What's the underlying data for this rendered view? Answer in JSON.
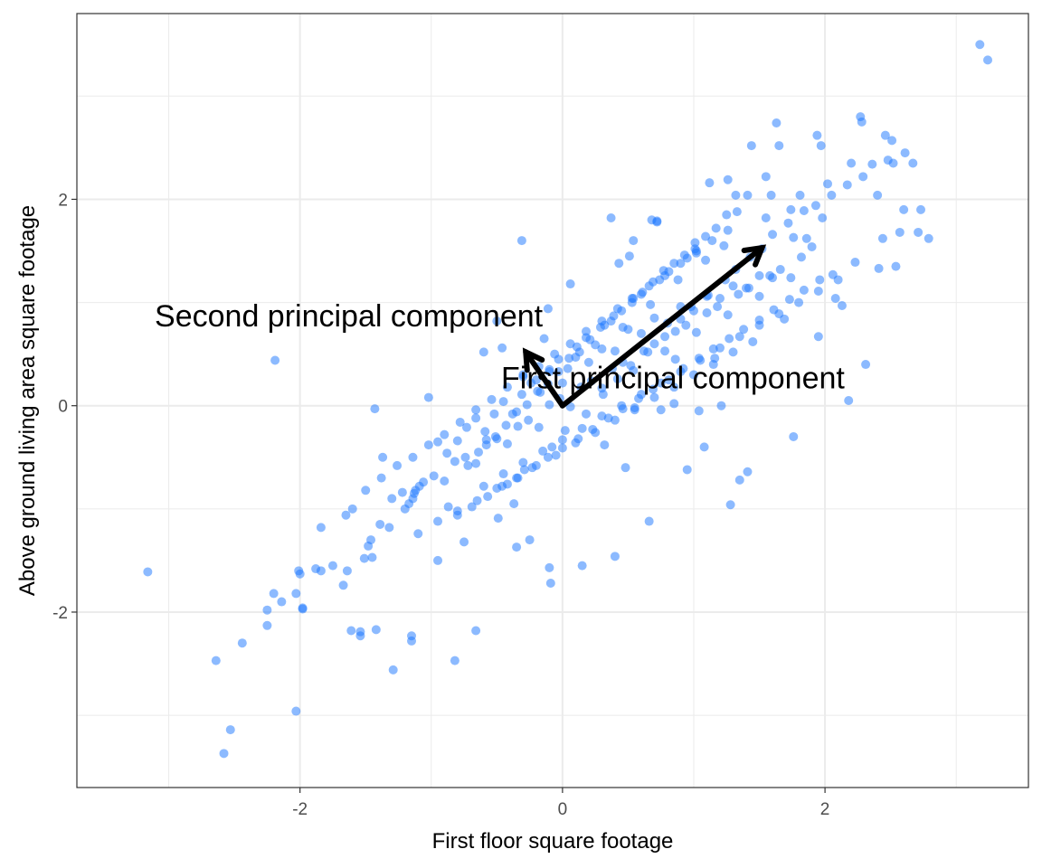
{
  "chart_data": {
    "type": "scatter",
    "title": "",
    "xlabel": "First floor square footage",
    "ylabel": "Above ground living area square footage",
    "xlim": [
      -3.7,
      3.55
    ],
    "ylim": [
      -3.7,
      3.8
    ],
    "x_ticks": [
      -2,
      0,
      2
    ],
    "y_ticks": [
      -2,
      0,
      2
    ],
    "x_tick_labels": [
      "-2",
      "0",
      "2"
    ],
    "y_tick_labels": [
      "-2",
      "0",
      "2"
    ],
    "grid": true,
    "legend": "none",
    "colors": {
      "points": "#1a75ff",
      "arrows": "#000000",
      "grid": "#ebebeb",
      "panel_border": "#333333"
    },
    "points": {
      "x": [
        3.18,
        3.24,
        2.27,
        2.28,
        1.63,
        1.65,
        2.46,
        2.51,
        1.94,
        1.97,
        2.2,
        2.52,
        2.67,
        2.02,
        2.4,
        1.44,
        1.55,
        1.59,
        1.81,
        1.98,
        1.12,
        1.26,
        1.32,
        1.41,
        1.55,
        1.74,
        2.6,
        2.73,
        2.79,
        2.57,
        2.44,
        2.71,
        2.41,
        2.54,
        1.01,
        0.72,
        0.37,
        0.54,
        1.23,
        1.76,
        1.86,
        1.9,
        0.51,
        0.43,
        -0.31,
        -0.5,
        -2.19,
        -1.43,
        -0.46,
        -1.02,
        -0.6,
        -0.14,
        0.06,
        -0.11,
        0.95,
        1.35,
        1.08,
        0.75,
        1.21,
        0.85,
        1.69,
        2.08,
        2.23,
        2.13,
        -2.44,
        -2.64,
        -2.25,
        -2.25,
        -2.2,
        -2.14,
        -2.03,
        -2.01,
        -2.0,
        -1.98,
        -1.84,
        -1.84,
        -1.88,
        -1.75,
        -1.67,
        -1.64,
        -1.54,
        -1.51,
        -1.48,
        -1.46,
        -1.39,
        -1.32,
        -1.2,
        -1.17,
        -1.12,
        -1.09,
        -3.16,
        -2.53,
        -2.58,
        -2.03,
        -1.98,
        -1.61,
        -1.54,
        -1.42,
        -1.29,
        -1.15,
        -1.15,
        -0.82,
        -0.66,
        -0.09,
        -0.25,
        -0.49,
        -0.37,
        -0.42,
        -0.29,
        -0.08,
        0.02,
        0.18,
        0.31,
        0.42,
        0.52,
        0.65,
        0.78,
        0.9,
        0.98,
        1.11,
        1.24,
        1.32,
        1.43,
        1.52,
        1.6,
        1.72,
        1.84,
        1.93,
        2.05,
        2.17,
        2.29,
        2.36,
        2.48,
        2.61,
        -0.72,
        -0.64,
        -0.58,
        -0.51,
        -0.43,
        -0.35,
        -0.27,
        -0.19,
        -0.11,
        -0.03,
        0.05,
        0.13,
        0.21,
        0.29,
        0.37,
        0.45,
        0.53,
        0.61,
        0.69,
        0.77,
        0.85,
        0.93,
        1.01,
        1.09,
        1.17,
        1.25,
        1.33,
        -0.95,
        -0.88,
        -0.8,
        -0.73,
        -0.66,
        -0.59,
        -0.52,
        -0.45,
        -0.38,
        -0.31,
        -0.24,
        -0.17,
        -0.1,
        -0.03,
        0.04,
        0.11,
        0.18,
        0.25,
        0.32,
        0.39,
        0.46,
        0.53,
        0.6,
        0.67,
        0.74,
        0.81,
        0.88,
        0.95,
        1.02,
        1.09,
        -1.3,
        -1.22,
        -1.14,
        -1.06,
        -0.98,
        -0.9,
        -0.82,
        -0.74,
        -0.66,
        -0.58,
        -0.5,
        -0.42,
        -0.34,
        -0.26,
        -0.18,
        -0.1,
        -0.02,
        0.06,
        0.14,
        0.22,
        0.3,
        0.38,
        0.46,
        0.54,
        0.62,
        0.7,
        0.78,
        0.86,
        0.94,
        1.02,
        1.1,
        1.18,
        1.26,
        1.34,
        1.42,
        1.5,
        1.58,
        1.66,
        1.74,
        1.82,
        -0.8,
        -0.69,
        -0.57,
        -0.46,
        -0.34,
        -0.23,
        -0.11,
        0.0,
        0.12,
        0.23,
        0.35,
        0.46,
        0.58,
        0.69,
        0.81,
        0.92,
        1.04,
        1.15,
        1.27,
        1.38,
        1.5,
        1.61,
        1.73,
        1.84,
        1.96,
        -1.5,
        -1.38,
        -1.26,
        -1.14,
        -1.02,
        -0.9,
        -0.78,
        -0.66,
        -0.54,
        -0.42,
        -0.3,
        -0.18,
        -0.06,
        0.06,
        0.18,
        0.3,
        0.42,
        0.54,
        0.66,
        0.78,
        0.9,
        1.02,
        1.14,
        1.26,
        -0.6,
        -0.45,
        -0.3,
        -0.15,
        0.0,
        0.15,
        0.3,
        0.45,
        0.6,
        0.75,
        0.9,
        1.05,
        1.2,
        1.35,
        1.5,
        1.65,
        1.8,
        1.95,
        2.1,
        -1.1,
        -0.95,
        -0.8,
        -0.65,
        -0.5,
        -0.35,
        -0.2,
        -0.05,
        0.1,
        0.25,
        0.4,
        0.55,
        0.7,
        0.85,
        1.0,
        1.15,
        1.3,
        1.45,
        -0.3,
        -0.2,
        -0.1,
        0.0,
        0.1,
        0.2,
        0.3,
        0.4,
        0.5,
        0.6,
        0.7,
        0.8,
        0.9,
        1.0,
        1.1,
        1.2,
        1.3,
        1.4,
        1.5,
        1.6,
        0.68,
        0.72,
        0.32,
        0.48,
        1.04,
        1.16,
        0.86,
        0.55,
        -1.37,
        -1.13,
        -0.87,
        -1.6,
        -1.45,
        -1.65,
        -0.95,
        -0.75,
        -0.35,
        -0.1,
        0.15,
        0.4,
        0.66,
        1.28,
        1.41,
        1.76,
        2.18,
        2.31,
        1.95,
        2.06
      ],
      "y": [
        3.5,
        3.35,
        2.8,
        2.75,
        2.74,
        2.52,
        2.62,
        2.57,
        2.62,
        2.52,
        2.35,
        2.35,
        2.35,
        2.15,
        2.04,
        2.52,
        2.22,
        2.04,
        2.04,
        1.82,
        2.16,
        2.19,
        2.04,
        2.04,
        1.82,
        1.9,
        1.9,
        1.9,
        1.62,
        1.68,
        1.62,
        1.68,
        1.33,
        1.35,
        1.52,
        1.79,
        1.82,
        1.6,
        1.55,
        1.63,
        1.62,
        1.54,
        1.45,
        1.38,
        1.6,
        0.82,
        0.44,
        -0.03,
        0.56,
        0.08,
        0.52,
        0.65,
        1.18,
        0.94,
        -0.62,
        -0.72,
        -0.4,
        -0.04,
        0.0,
        0.02,
        0.84,
        1.04,
        1.39,
        0.97,
        -2.3,
        -2.47,
        -2.13,
        -1.98,
        -1.82,
        -1.9,
        -1.82,
        -1.6,
        -1.63,
        -1.97,
        -1.6,
        -1.18,
        -1.58,
        -1.55,
        -1.74,
        -1.6,
        -2.19,
        -1.48,
        -1.36,
        -1.3,
        -1.15,
        -1.18,
        -1.0,
        -0.95,
        -0.82,
        -0.78,
        -1.61,
        -3.14,
        -3.37,
        -2.96,
        -1.96,
        -2.18,
        -2.23,
        -2.17,
        -2.56,
        -2.23,
        -2.28,
        -2.47,
        -2.18,
        -1.72,
        -1.3,
        -1.09,
        -0.95,
        -0.76,
        -0.62,
        -0.4,
        -0.24,
        -0.08,
        0.11,
        0.26,
        0.39,
        0.52,
        0.67,
        0.84,
        0.96,
        1.07,
        1.22,
        1.32,
        1.44,
        1.52,
        1.66,
        1.77,
        1.89,
        1.94,
        2.04,
        2.14,
        2.22,
        2.34,
        2.38,
        2.45,
        -0.58,
        -0.45,
        -0.33,
        -0.3,
        -0.19,
        -0.06,
        0.01,
        0.14,
        0.21,
        0.33,
        0.46,
        0.52,
        0.64,
        0.76,
        0.82,
        0.92,
        1.04,
        1.1,
        1.2,
        1.31,
        1.38,
        1.46,
        1.58,
        1.64,
        1.72,
        1.85,
        1.88,
        -0.35,
        -0.46,
        -0.34,
        -0.21,
        -0.12,
        -0.25,
        -0.08,
        0.04,
        -0.08,
        0.11,
        0.22,
        0.13,
        0.33,
        0.45,
        0.36,
        0.57,
        0.66,
        0.59,
        0.78,
        0.87,
        0.76,
        1.0,
        1.08,
        0.98,
        1.22,
        1.3,
        1.22,
        1.43,
        1.5,
        1.41,
        -0.9,
        -0.84,
        -0.9,
        -0.74,
        -0.68,
        -0.73,
        -0.54,
        -0.5,
        -0.56,
        -0.38,
        -0.32,
        -0.37,
        -0.2,
        -0.14,
        -0.21,
        0.01,
        0.07,
        -0.01,
        0.18,
        0.24,
        0.17,
        0.36,
        0.42,
        0.34,
        0.53,
        0.6,
        0.53,
        0.72,
        0.78,
        0.71,
        0.9,
        0.96,
        0.88,
        1.08,
        1.14,
        1.06,
        1.26,
        1.32,
        1.24,
        1.44,
        -1.06,
        -0.98,
        -0.88,
        -0.78,
        -0.7,
        -0.6,
        -0.5,
        -0.41,
        -0.32,
        -0.23,
        -0.12,
        -0.03,
        0.07,
        0.16,
        0.25,
        0.36,
        0.46,
        0.55,
        0.65,
        0.74,
        0.83,
        0.93,
        1.03,
        1.12,
        1.22,
        -0.82,
        -0.7,
        -0.58,
        -0.5,
        -0.38,
        -0.28,
        -0.16,
        -0.04,
        0.06,
        0.18,
        0.28,
        0.38,
        0.5,
        0.6,
        0.72,
        0.82,
        0.94,
        1.04,
        1.16,
        1.26,
        1.38,
        1.48,
        1.6,
        1.7,
        -0.78,
        -0.66,
        -0.55,
        -0.44,
        -0.33,
        -0.22,
        -0.1,
        0.0,
        0.11,
        0.22,
        0.33,
        0.44,
        0.56,
        0.67,
        0.78,
        0.89,
        1.0,
        1.11,
        1.22,
        -1.24,
        -1.12,
        -1.02,
        -0.92,
        -0.8,
        -0.7,
        -0.58,
        -0.48,
        -0.36,
        -0.26,
        -0.14,
        -0.04,
        0.08,
        0.18,
        0.3,
        0.4,
        0.52,
        0.62,
        0.3,
        0.25,
        0.35,
        0.22,
        0.47,
        0.42,
        0.55,
        0.53,
        0.74,
        0.7,
        0.85,
        0.8,
        0.96,
        0.92,
        1.06,
        1.04,
        1.16,
        1.14,
        1.26,
        1.24,
        1.8,
        1.78,
        -0.38,
        -0.6,
        -0.05,
        0.46,
        0.45,
        -0.02,
        -0.5,
        -0.85,
        -0.98,
        -1.0,
        -1.47,
        -1.06,
        -1.5,
        -1.32,
        -1.37,
        -1.57,
        -1.55,
        -1.46,
        -1.12,
        -0.96,
        -0.64,
        -0.3,
        0.05,
        0.4,
        0.67,
        1.27
      ]
    },
    "pc_arrows": [
      {
        "name": "First principal component",
        "x": [
          0,
          1.52
        ],
        "y": [
          0,
          1.53
        ]
      },
      {
        "name": "Second principal component",
        "x": [
          0,
          -0.28
        ],
        "y": [
          0,
          0.52
        ]
      }
    ],
    "annotations": [
      {
        "text": "Second principal component",
        "x": -0.15,
        "y": 0.77
      },
      {
        "text": "First principal component",
        "x": 2.15,
        "y": 0.17
      }
    ]
  }
}
